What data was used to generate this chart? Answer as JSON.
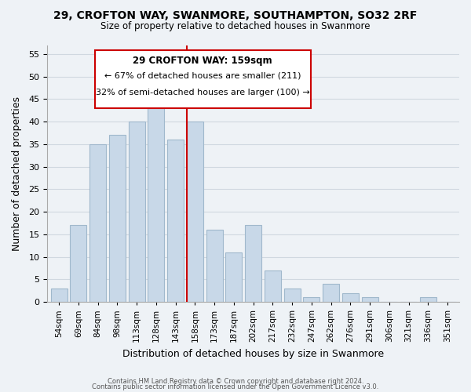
{
  "title1": "29, CROFTON WAY, SWANMORE, SOUTHAMPTON, SO32 2RF",
  "title2": "Size of property relative to detached houses in Swanmore",
  "xlabel": "Distribution of detached houses by size in Swanmore",
  "ylabel": "Number of detached properties",
  "bar_labels": [
    "54sqm",
    "69sqm",
    "84sqm",
    "98sqm",
    "113sqm",
    "128sqm",
    "143sqm",
    "158sqm",
    "173sqm",
    "187sqm",
    "202sqm",
    "217sqm",
    "232sqm",
    "247sqm",
    "262sqm",
    "276sqm",
    "291sqm",
    "306sqm",
    "321sqm",
    "336sqm",
    "351sqm"
  ],
  "bar_values": [
    3,
    17,
    35,
    37,
    40,
    43,
    36,
    40,
    16,
    11,
    17,
    7,
    3,
    1,
    4,
    2,
    1,
    0,
    0,
    1,
    0
  ],
  "bar_color": "#c8d8e8",
  "bar_edge_color": "#a0b8cc",
  "grid_color": "#d0d8e0",
  "reference_line_x": 7,
  "annotation_title": "29 CROFTON WAY: 159sqm",
  "annotation_line1": "← 67% of detached houses are smaller (211)",
  "annotation_line2": "32% of semi-detached houses are larger (100) →",
  "box_edge_color": "#cc0000",
  "box_face_color": "#ffffff",
  "ylim": [
    0,
    57
  ],
  "yticks": [
    0,
    5,
    10,
    15,
    20,
    25,
    30,
    35,
    40,
    45,
    50,
    55
  ],
  "footer1": "Contains HM Land Registry data © Crown copyright and database right 2024.",
  "footer2": "Contains public sector information licensed under the Open Government Licence v3.0.",
  "bg_color": "#eef2f6"
}
